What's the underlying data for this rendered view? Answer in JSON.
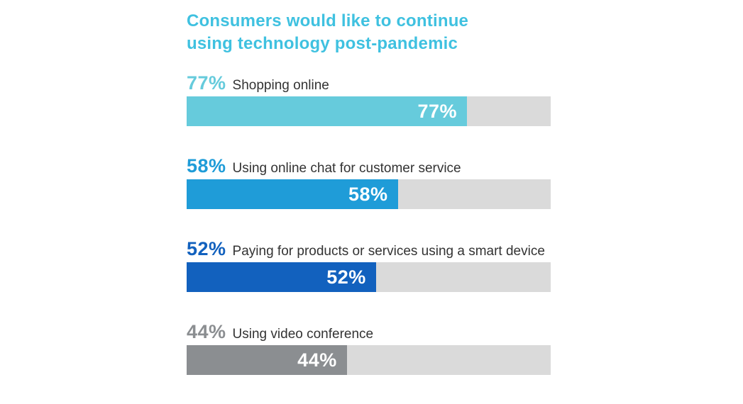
{
  "chart_data": {
    "type": "bar",
    "orientation": "horizontal",
    "title": "Consumers would like to continue using technology post-pandemic",
    "title_lines": [
      "Consumers would like to continue",
      "using technology post-pandemic"
    ],
    "categories": [
      "Shopping online",
      "Using online chat for customer service",
      "Paying for products or services using a smart device",
      "Using video conference"
    ],
    "values": [
      77,
      58,
      52,
      44
    ],
    "value_labels": [
      "77%",
      "58%",
      "52%",
      "44%"
    ],
    "xlim": [
      0,
      100
    ],
    "grid": false,
    "legend": false,
    "bar_colors": [
      "#66CBDC",
      "#1F9CD8",
      "#1261BE",
      "#8B8E91"
    ],
    "track_color": "#DADADA",
    "title_color": "#3FC1E0",
    "category_text_color": "#333333",
    "inside_label_color": "#FFFFFF"
  }
}
